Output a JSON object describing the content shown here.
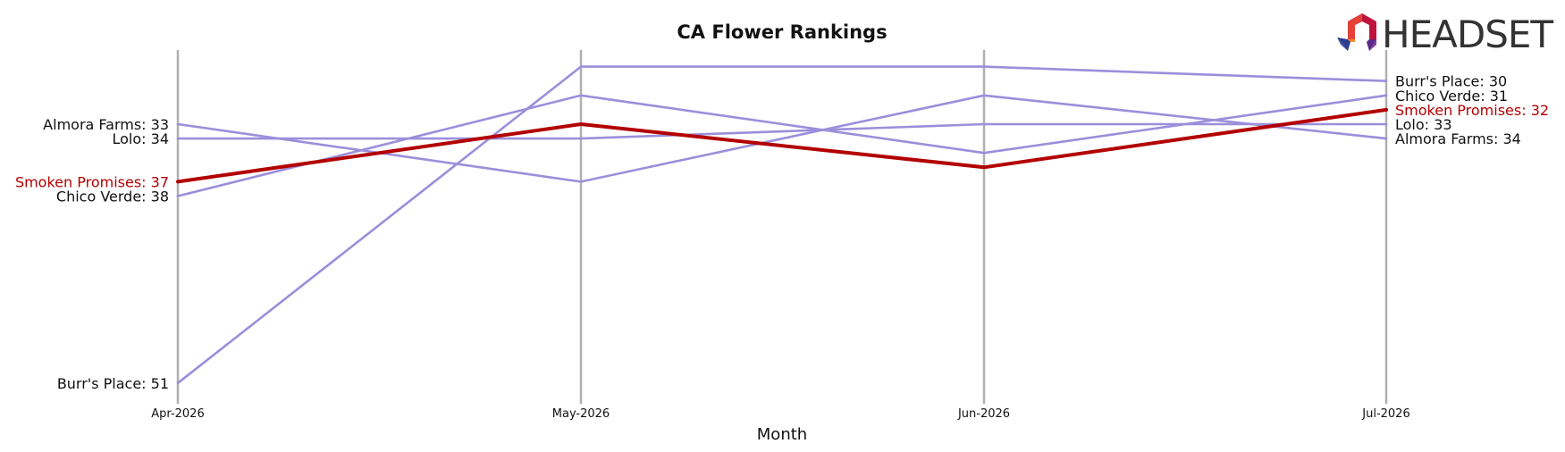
{
  "chart_data": {
    "type": "line",
    "title": "CA Flower Rankings",
    "xlabel": "Month",
    "ylabel": "",
    "categories": [
      "Apr-2026",
      "May-2026",
      "Jun-2026",
      "Jul-2026"
    ],
    "ylim": [
      53,
      26
    ],
    "y_inverted": true,
    "grid": false,
    "series": [
      {
        "name": "Almora Farms",
        "values": [
          33,
          37,
          31,
          34
        ],
        "color": "#9b8fdb",
        "highlight": false
      },
      {
        "name": "Lolo",
        "values": [
          34,
          34,
          33,
          33
        ],
        "color": "#9b8fdb",
        "highlight": false
      },
      {
        "name": "Chico Verde",
        "values": [
          38,
          31,
          35,
          31
        ],
        "color": "#9b8fdb",
        "highlight": false
      },
      {
        "name": "Burr's Place",
        "values": [
          51,
          29,
          29,
          30
        ],
        "color": "#9b8fdb",
        "highlight": false
      },
      {
        "name": "Smoken Promises",
        "values": [
          37,
          33,
          36,
          32
        ],
        "color": "#b30000",
        "highlight": true
      }
    ],
    "left_labels": [
      "Almora Farms: 33",
      "Lolo: 34",
      "Smoken Promises: 37",
      "Chico Verde: 38",
      "Burr's Place: 51"
    ],
    "right_labels": [
      "Burr's Place: 30",
      "Chico Verde: 31",
      "Smoken Promises: 32",
      "Lolo: 33",
      "Almora Farms: 34"
    ]
  },
  "logo": {
    "text": "HEADSET"
  },
  "colors": {
    "highlight": "#b30000",
    "other": "#9b8fdb",
    "vline": "#b0b0b0",
    "label": "#111111"
  }
}
